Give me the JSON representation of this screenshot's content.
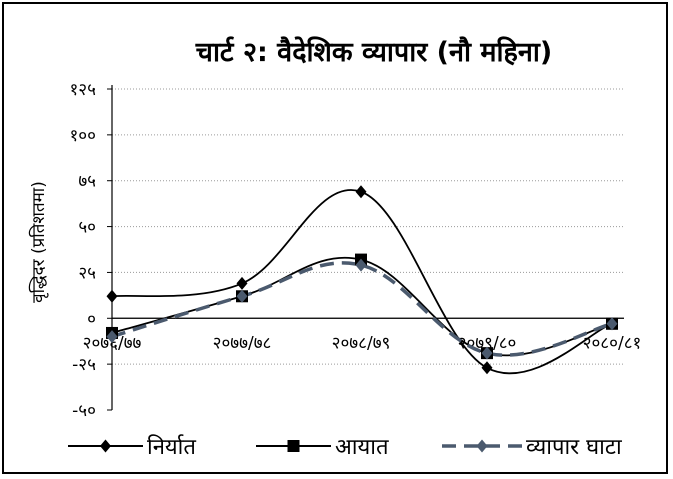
{
  "chart_data": {
    "type": "line",
    "title": "चार्ट २: वैदेशिक व्यापार (नौ महिना)",
    "ylabel": "वृद्धिदर  (प्रतिशतमा)",
    "xlabel": "",
    "categories": [
      "२०७६/७७",
      "२०७७/७८",
      "२०७८/७९",
      "२०७९/८०",
      "२०८०/८१"
    ],
    "ylim": [
      -50,
      125
    ],
    "yticks": [
      125,
      100,
      75,
      50,
      25,
      0,
      -25,
      -50
    ],
    "ytick_labels": [
      "१२५",
      "१००",
      "७५",
      "५०",
      "२५",
      "०",
      "-२५",
      "-५०"
    ],
    "grid": true,
    "legend_position": "bottom",
    "series": [
      {
        "name": "निर्यात",
        "values": [
          12,
          19,
          69,
          -27,
          -3
        ],
        "color": "#000000",
        "marker": "diamond",
        "style": "solid"
      },
      {
        "name": "आयात",
        "values": [
          -8,
          12,
          32,
          -19,
          -3
        ],
        "color": "#000000",
        "marker": "square",
        "style": "solid"
      },
      {
        "name": "व्यापार घाटा",
        "values": [
          -10,
          12,
          29,
          -19,
          -3
        ],
        "color": "#4b5a6e",
        "marker": "diamond",
        "style": "dashed"
      }
    ]
  }
}
